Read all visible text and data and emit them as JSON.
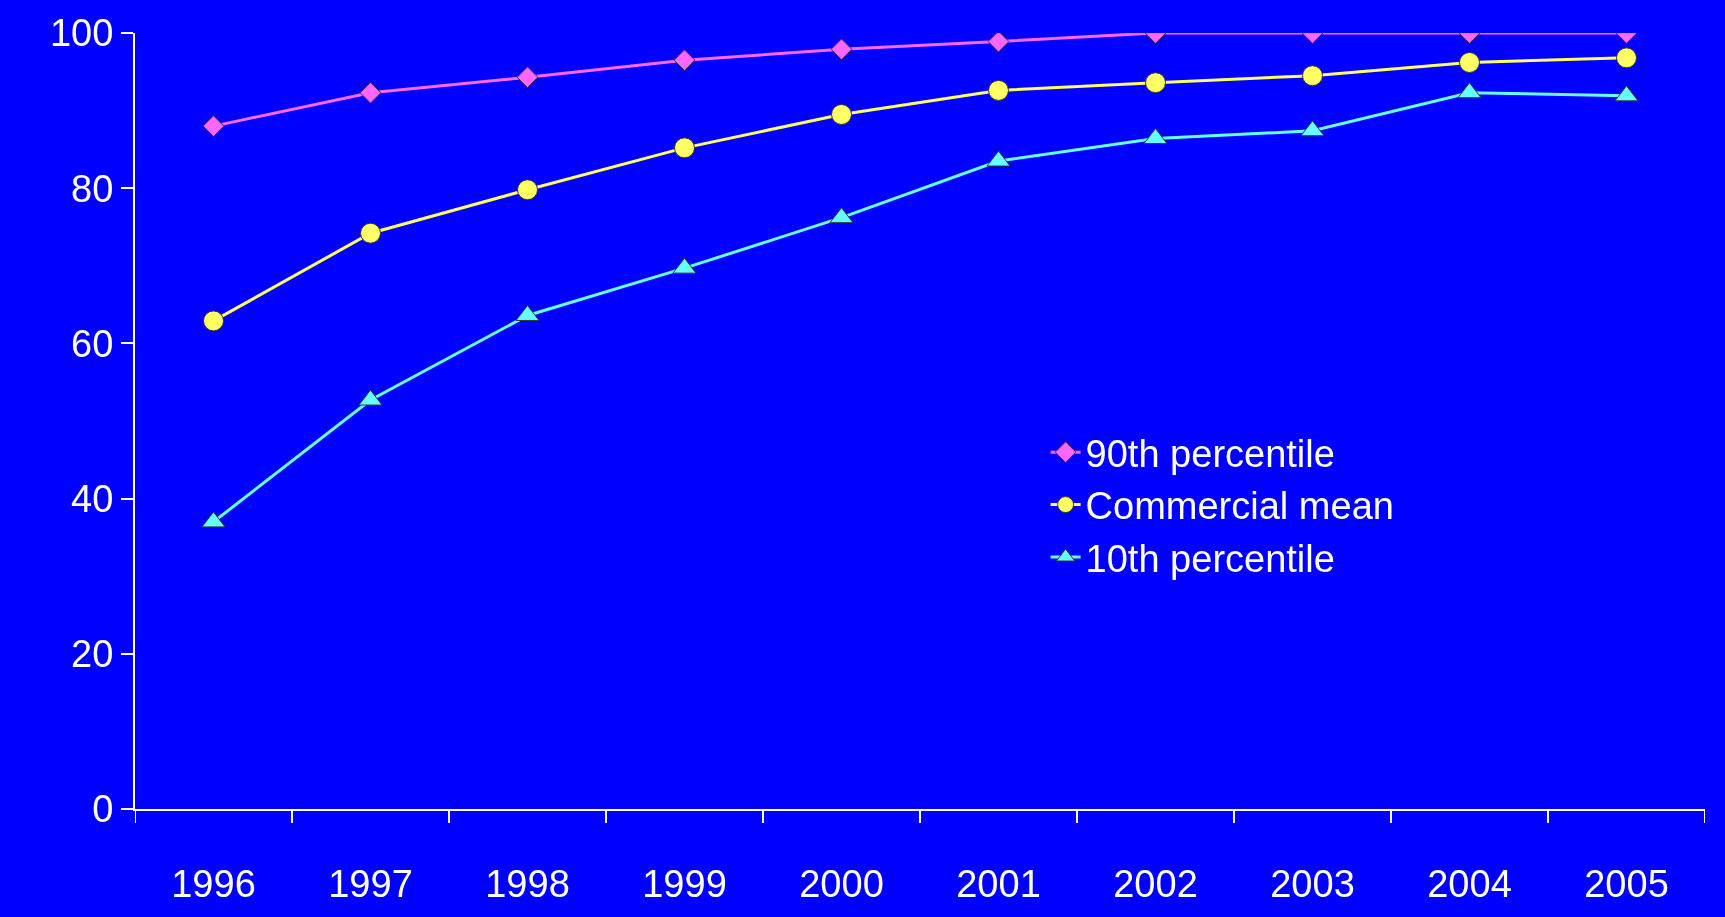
{
  "chart_data": {
    "type": "line",
    "categories": [
      "1996",
      "1997",
      "1998",
      "1999",
      "2000",
      "2001",
      "2002",
      "2003",
      "2004",
      "2005"
    ],
    "series": [
      {
        "name": "90th percentile",
        "color": "#ff66ff",
        "marker": "diamond",
        "values": [
          88,
          92.3,
          94.3,
          96.5,
          97.9,
          98.9,
          100,
          100,
          100,
          100
        ]
      },
      {
        "name": "Commercial mean",
        "color": "#ffff66",
        "marker": "circle",
        "values": [
          62.9,
          74.2,
          79.8,
          85.2,
          89.5,
          92.6,
          93.6,
          94.5,
          96.2,
          96.8
        ]
      },
      {
        "name": "10th percentile",
        "color": "#66ffff",
        "marker": "triangle",
        "values": [
          37,
          52.7,
          63.6,
          69.7,
          76.2,
          83.5,
          86.4,
          87.4,
          92.3,
          91.9
        ]
      }
    ],
    "ylim": [
      0,
      100
    ],
    "yticks": [
      0,
      20,
      40,
      60,
      80,
      100
    ],
    "grid": false,
    "legend": "right",
    "line_style": "solid"
  }
}
